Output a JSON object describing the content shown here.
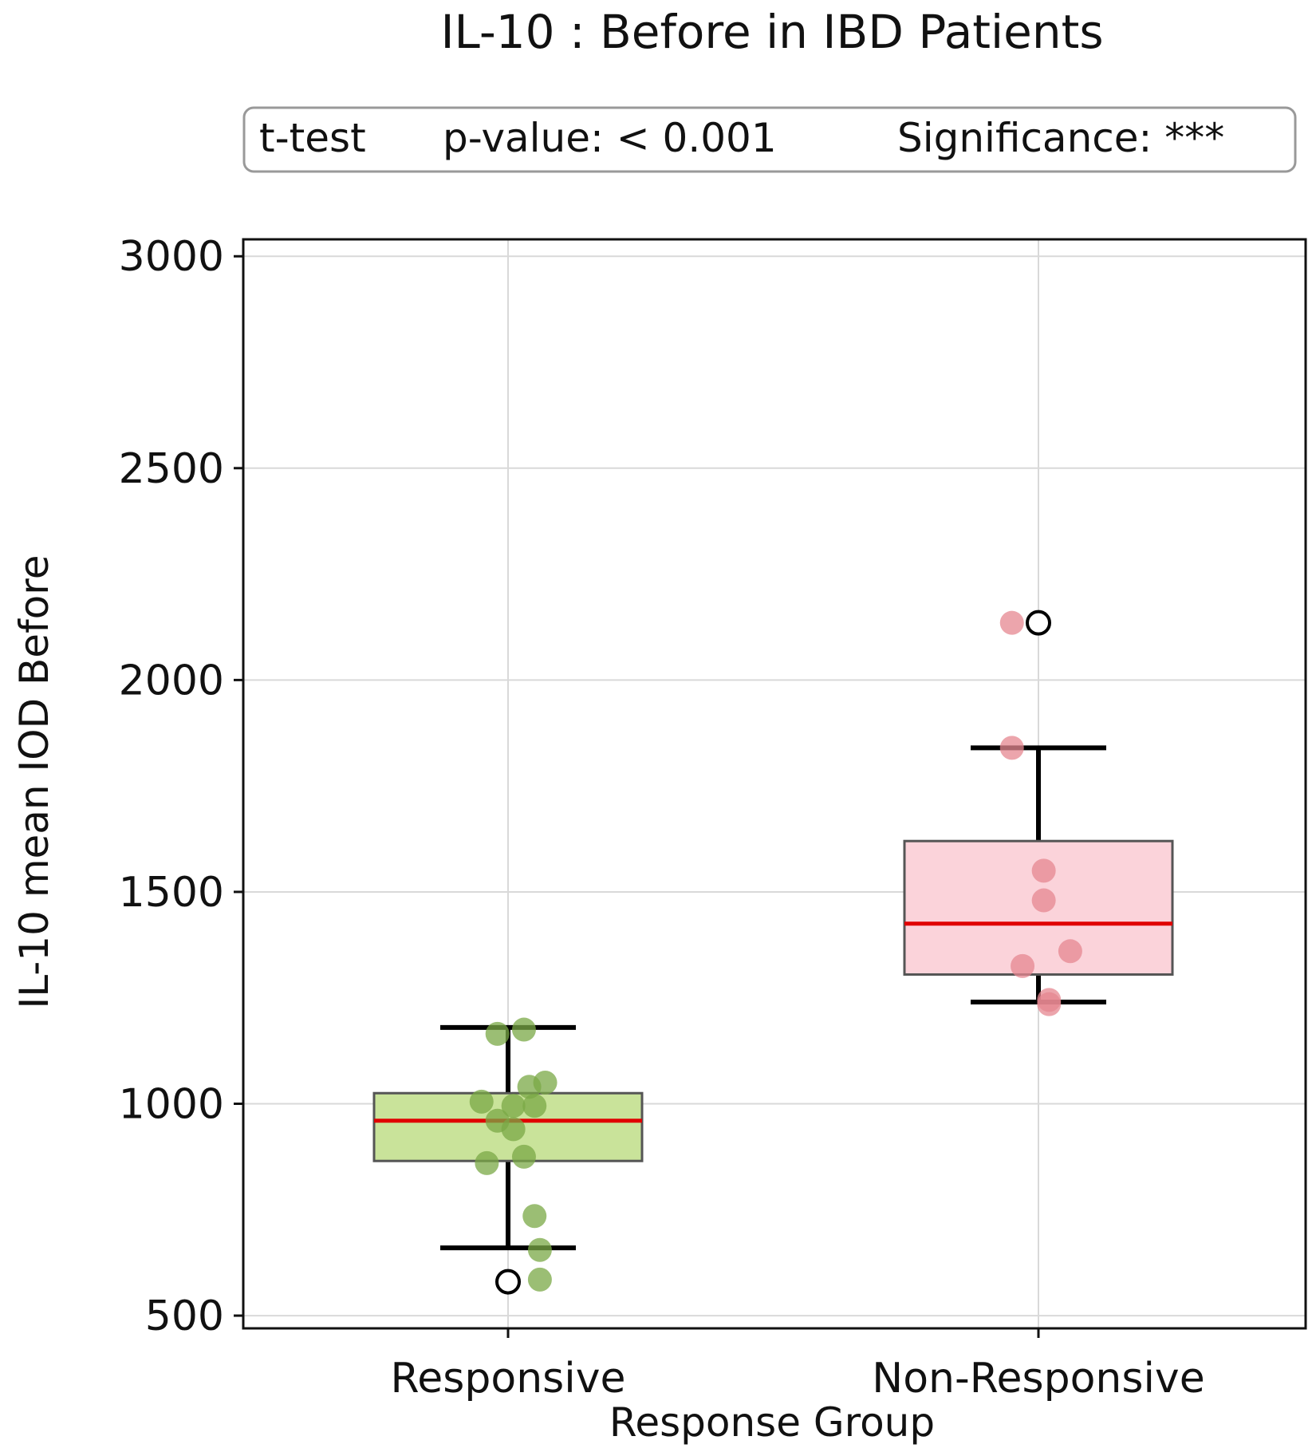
{
  "chart_data": {
    "type": "box",
    "title": "IL-10 : Before in IBD Patients",
    "annotation": {
      "test": "t-test",
      "p_value": "p-value: < 0.001",
      "significance": "Significance: ***"
    },
    "xlabel": "Response Group",
    "ylabel": "IL-10 mean IOD Before",
    "ylim": [
      470,
      3040
    ],
    "yticks": [
      500,
      1000,
      1500,
      2000,
      2500,
      3000
    ],
    "grid": true,
    "categories": [
      "Responsive",
      "Non-Responsive"
    ],
    "boxes": [
      {
        "category": "Responsive",
        "color": "#c9e39a",
        "edge_color": "#555555",
        "point_color": "#7aa845",
        "q1": 865,
        "median": 960,
        "q3": 1025,
        "whisker_low": 660,
        "whisker_high": 1180,
        "outliers": [
          580
        ],
        "points": [
          {
            "x": 0.03,
            "y": 1175
          },
          {
            "x": -0.02,
            "y": 1165
          },
          {
            "x": 0.07,
            "y": 1050
          },
          {
            "x": 0.04,
            "y": 1040
          },
          {
            "x": -0.05,
            "y": 1005
          },
          {
            "x": 0.01,
            "y": 995
          },
          {
            "x": 0.05,
            "y": 995
          },
          {
            "x": -0.02,
            "y": 960
          },
          {
            "x": 0.01,
            "y": 940
          },
          {
            "x": 0.03,
            "y": 875
          },
          {
            "x": -0.04,
            "y": 860
          },
          {
            "x": 0.05,
            "y": 735
          },
          {
            "x": 0.06,
            "y": 655
          },
          {
            "x": 0.06,
            "y": 585
          }
        ]
      },
      {
        "category": "Non-Responsive",
        "color": "#fbd3da",
        "edge_color": "#555555",
        "point_color": "#e58790",
        "q1": 1305,
        "median": 1425,
        "q3": 1620,
        "whisker_low": 1240,
        "whisker_high": 1840,
        "outliers": [
          2135
        ],
        "points": [
          {
            "x": -0.05,
            "y": 2135
          },
          {
            "x": -0.05,
            "y": 1840
          },
          {
            "x": 0.01,
            "y": 1550
          },
          {
            "x": 0.01,
            "y": 1480
          },
          {
            "x": 0.06,
            "y": 1360
          },
          {
            "x": -0.03,
            "y": 1325
          },
          {
            "x": 0.02,
            "y": 1245
          },
          {
            "x": 0.02,
            "y": 1235
          }
        ]
      }
    ],
    "median_color": "#e00000"
  }
}
